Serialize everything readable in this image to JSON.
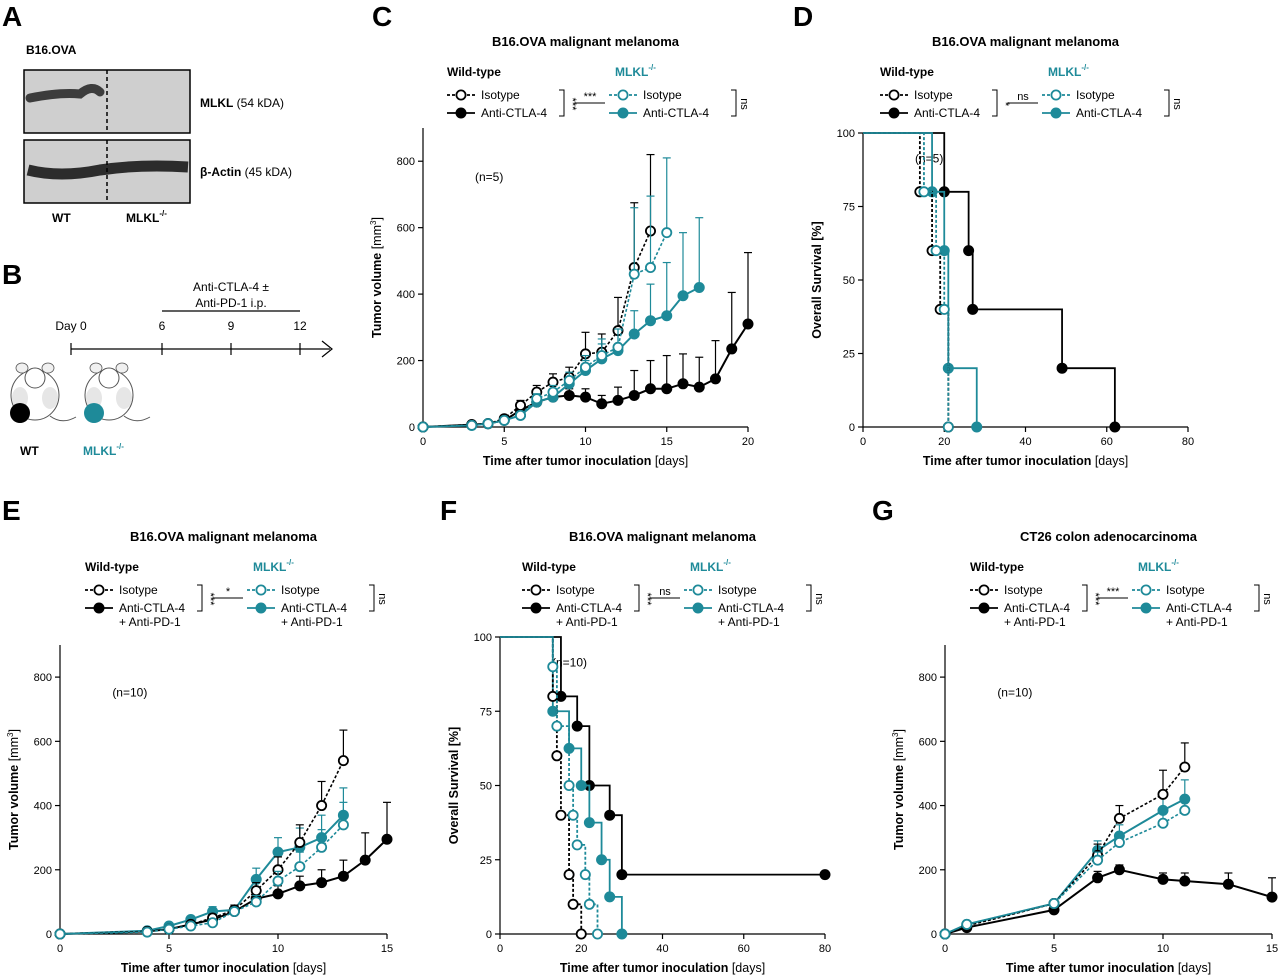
{
  "panel_labels": {
    "A": "A",
    "B": "B",
    "C": "C",
    "D": "D",
    "E": "E",
    "F": "F",
    "G": "G"
  },
  "colors": {
    "wt": "#000000",
    "mlkl": "#1e8a99"
  },
  "panelA": {
    "cell_line": "B16.OVA",
    "bands": [
      {
        "name": "MLKL",
        "size": " (54 kDA)"
      },
      {
        "name": "β-Actin",
        "size": " (45 kDA)"
      }
    ],
    "lanes": {
      "wt": "WT",
      "mlkl": "MLKL",
      "mlkl_sup": "-/-"
    }
  },
  "panelB": {
    "treatment_line1": "Anti-CTLA-4 ±",
    "treatment_line2": "Anti-PD-1 i.p.",
    "day_label": "Day 0",
    "days": [
      "6",
      "9",
      "12"
    ],
    "wt_label": "WT",
    "mlkl_label": "MLKL",
    "mlkl_sup": "-/-"
  },
  "chart_data": [
    {
      "id": "C",
      "type": "line",
      "title": "B16.OVA malignant melanoma",
      "xlabel": "Time after tumor inoculation",
      "xunit": "[days]",
      "ylabel": "Tumor volume",
      "yunit": "[mm",
      "yunit_sup": "3",
      "yunit_end": "]",
      "xlim": [
        0,
        20
      ],
      "xticks": [
        0,
        5,
        10,
        15,
        20
      ],
      "ylim": [
        0,
        900
      ],
      "yticks": [
        0,
        200,
        400,
        600,
        800
      ],
      "n_label": "(n=5)",
      "legend": {
        "wt_header": "Wild-type",
        "mlkl_header": "MLKL",
        "mlkl_sup": "-/-",
        "wt_items": [
          [
            "Isotype"
          ],
          [
            "Anti-CTLA-4"
          ]
        ],
        "mlkl_items": [
          [
            "Isotype"
          ],
          [
            "Anti-CTLA-4"
          ]
        ],
        "wt_sig": "***",
        "cross_sig": "***",
        "mlkl_sig": "ns"
      },
      "series": [
        {
          "name": "Isotype",
          "group": "wt",
          "filled": false,
          "dashed": true,
          "x": [
            0,
            3,
            4,
            5,
            6,
            7,
            8,
            9,
            10,
            11,
            12,
            13,
            14
          ],
          "y": [
            0,
            7,
            10,
            25,
            65,
            105,
            135,
            150,
            220,
            225,
            290,
            480,
            590
          ],
          "err": [
            0,
            3,
            5,
            8,
            15,
            20,
            25,
            30,
            65,
            55,
            100,
            195,
            230
          ]
        },
        {
          "name": "Anti-CTLA-4",
          "group": "wt",
          "filled": true,
          "dashed": false,
          "x": [
            0,
            3,
            4,
            5,
            6,
            7,
            8,
            9,
            10,
            11,
            12,
            13,
            14,
            15,
            16,
            17,
            18,
            19,
            20
          ],
          "y": [
            0,
            7,
            10,
            20,
            50,
            75,
            90,
            95,
            90,
            70,
            80,
            95,
            115,
            115,
            130,
            120,
            145,
            235,
            310
          ],
          "err": [
            0,
            3,
            5,
            8,
            10,
            15,
            20,
            20,
            25,
            25,
            40,
            75,
            85,
            100,
            90,
            90,
            115,
            170,
            215
          ]
        },
        {
          "name": "Isotype",
          "group": "mlkl",
          "filled": false,
          "dashed": true,
          "x": [
            0,
            3,
            4,
            5,
            6,
            7,
            8,
            9,
            10,
            11,
            12,
            13,
            14,
            15
          ],
          "y": [
            0,
            5,
            10,
            20,
            35,
            85,
            105,
            140,
            180,
            215,
            240,
            460,
            480,
            585
          ],
          "err": [
            0,
            3,
            5,
            8,
            10,
            15,
            20,
            25,
            35,
            50,
            55,
            200,
            215,
            225
          ]
        },
        {
          "name": "Anti-CTLA-4",
          "group": "mlkl",
          "filled": true,
          "dashed": false,
          "x": [
            0,
            3,
            4,
            5,
            6,
            7,
            8,
            9,
            10,
            11,
            12,
            13,
            14,
            15,
            16,
            17
          ],
          "y": [
            0,
            5,
            10,
            20,
            35,
            75,
            90,
            130,
            170,
            205,
            230,
            280,
            320,
            335,
            395,
            420
          ],
          "err": [
            0,
            3,
            5,
            8,
            10,
            12,
            15,
            20,
            30,
            45,
            50,
            70,
            110,
            160,
            190,
            210
          ]
        }
      ]
    },
    {
      "id": "D",
      "type": "line",
      "title": "B16.OVA malignant melanoma",
      "xlabel": "Time after tumor inoculation",
      "xunit": "[days]",
      "ylabel": "Overall Survival [%]",
      "xlim": [
        0,
        80
      ],
      "xticks": [
        0,
        20,
        40,
        60,
        80
      ],
      "ylim": [
        0,
        100
      ],
      "yticks": [
        0,
        25,
        50,
        75,
        100
      ],
      "n_label": "(n=5)",
      "legend": {
        "wt_header": "Wild-type",
        "mlkl_header": "MLKL",
        "mlkl_sup": "-/-",
        "wt_items": [
          [
            "Isotype"
          ],
          [
            "Anti-CTLA-4"
          ]
        ],
        "mlkl_items": [
          [
            "Isotype"
          ],
          [
            "Anti-CTLA-4"
          ]
        ],
        "wt_sig": "*",
        "cross_sig": "ns",
        "mlkl_sig": "ns"
      },
      "series": [
        {
          "name": "Isotype",
          "group": "wt",
          "filled": false,
          "dashed": true,
          "steps": [
            [
              14,
              80
            ],
            [
              17,
              60
            ],
            [
              19,
              40
            ],
            [
              21,
              0
            ]
          ]
        },
        {
          "name": "Anti-CTLA-4",
          "group": "wt",
          "filled": true,
          "dashed": false,
          "steps": [
            [
              20,
              80
            ],
            [
              26,
              60
            ],
            [
              27,
              40
            ],
            [
              49,
              20
            ],
            [
              62,
              0
            ]
          ]
        },
        {
          "name": "Isotype",
          "group": "mlkl",
          "filled": false,
          "dashed": true,
          "steps": [
            [
              15,
              80
            ],
            [
              18,
              60
            ],
            [
              20,
              40
            ],
            [
              21,
              0
            ]
          ]
        },
        {
          "name": "Anti-CTLA-4",
          "group": "mlkl",
          "filled": true,
          "dashed": false,
          "steps": [
            [
              17,
              80
            ],
            [
              20,
              60
            ],
            [
              21,
              20
            ],
            [
              28,
              0
            ]
          ]
        }
      ]
    },
    {
      "id": "E",
      "type": "line",
      "title": "B16.OVA malignant melanoma",
      "xlabel": "Time after tumor inoculation",
      "xunit": "[days]",
      "ylabel": "Tumor volume",
      "yunit": "[mm",
      "yunit_sup": "3",
      "yunit_end": "]",
      "xlim": [
        0,
        15
      ],
      "xticks": [
        0,
        5,
        10,
        15
      ],
      "ylim": [
        0,
        900
      ],
      "yticks": [
        0,
        200,
        400,
        600,
        800
      ],
      "n_label": "(n=10)",
      "legend": {
        "wt_header": "Wild-type",
        "mlkl_header": "MLKL",
        "mlkl_sup": "-/-",
        "wt_items": [
          [
            "Isotype"
          ],
          [
            "Anti-CTLA-4",
            "+ Anti-PD-1"
          ]
        ],
        "mlkl_items": [
          [
            "Isotype"
          ],
          [
            "Anti-CTLA-4",
            "+ Anti-PD-1"
          ]
        ],
        "wt_sig": "***",
        "cross_sig": "*",
        "mlkl_sig": "ns"
      },
      "series": [
        {
          "name": "Isotype",
          "group": "wt",
          "filled": false,
          "dashed": true,
          "x": [
            0,
            4,
            5,
            6,
            7,
            8,
            9,
            10,
            11,
            12,
            13
          ],
          "y": [
            0,
            8,
            15,
            30,
            50,
            75,
            135,
            200,
            285,
            400,
            540
          ],
          "err": [
            0,
            4,
            5,
            8,
            10,
            15,
            25,
            40,
            55,
            75,
            95
          ]
        },
        {
          "name": "Anti-CTLA-4 + Anti-PD-1",
          "group": "wt",
          "filled": true,
          "dashed": false,
          "x": [
            0,
            4,
            5,
            6,
            7,
            8,
            9,
            10,
            11,
            12,
            13,
            14,
            15
          ],
          "y": [
            0,
            8,
            15,
            30,
            45,
            70,
            110,
            125,
            150,
            160,
            180,
            230,
            295
          ],
          "err": [
            0,
            4,
            5,
            6,
            8,
            12,
            20,
            25,
            30,
            40,
            50,
            85,
            115
          ]
        },
        {
          "name": "Isotype",
          "group": "mlkl",
          "filled": false,
          "dashed": true,
          "x": [
            0,
            4,
            5,
            6,
            7,
            8,
            9,
            10,
            11,
            12,
            13
          ],
          "y": [
            0,
            6,
            15,
            25,
            35,
            70,
            100,
            165,
            210,
            270,
            340
          ],
          "err": [
            0,
            3,
            5,
            6,
            8,
            12,
            20,
            30,
            45,
            55,
            70
          ]
        },
        {
          "name": "Anti-CTLA-4 + Anti-PD-1",
          "group": "mlkl",
          "filled": true,
          "dashed": false,
          "x": [
            0,
            4,
            5,
            6,
            7,
            8,
            9,
            10,
            11,
            12,
            13
          ],
          "y": [
            0,
            10,
            25,
            45,
            70,
            75,
            170,
            255,
            270,
            300,
            370
          ],
          "err": [
            0,
            5,
            8,
            10,
            15,
            15,
            35,
            45,
            60,
            70,
            85
          ]
        }
      ]
    },
    {
      "id": "F",
      "type": "line",
      "title": "B16.OVA malignant melanoma",
      "xlabel": "Time after tumor inoculation",
      "xunit": "[days]",
      "ylabel": "Overall Survival [%]",
      "xlim": [
        0,
        80
      ],
      "xticks": [
        0,
        20,
        40,
        60,
        80
      ],
      "ylim": [
        0,
        100
      ],
      "yticks": [
        0,
        25,
        50,
        75,
        100
      ],
      "n_label": "(n=10)",
      "legend": {
        "wt_header": "Wild-type",
        "mlkl_header": "MLKL",
        "mlkl_sup": "-/-",
        "wt_items": [
          [
            "Isotype"
          ],
          [
            "Anti-CTLA-4",
            "+ Anti-PD-1"
          ]
        ],
        "mlkl_items": [
          [
            "Isotype"
          ],
          [
            "Anti-CTLA-4",
            "+ Anti-PD-1"
          ]
        ],
        "wt_sig": "***",
        "cross_sig": "ns",
        "mlkl_sig": "ns"
      },
      "series": [
        {
          "name": "Isotype",
          "group": "wt",
          "filled": false,
          "dashed": true,
          "steps": [
            [
              13,
              80
            ],
            [
              14,
              60
            ],
            [
              15,
              40
            ],
            [
              17,
              20
            ],
            [
              18,
              10
            ],
            [
              20,
              0
            ]
          ]
        },
        {
          "name": "Anti-CTLA-4 + Anti-PD-1",
          "group": "wt",
          "filled": true,
          "dashed": false,
          "steps": [
            [
              15,
              80
            ],
            [
              19,
              70
            ],
            [
              22,
              50
            ],
            [
              27,
              40
            ],
            [
              30,
              20
            ]
          ],
          "end": [
            80,
            20
          ]
        },
        {
          "name": "Isotype",
          "group": "mlkl",
          "filled": false,
          "dashed": true,
          "steps": [
            [
              13,
              90
            ],
            [
              14,
              70
            ],
            [
              17,
              50
            ],
            [
              18,
              40
            ],
            [
              19,
              30
            ],
            [
              21,
              20
            ],
            [
              22,
              10
            ],
            [
              24,
              0
            ]
          ]
        },
        {
          "name": "Anti-CTLA-4 + Anti-PD-1",
          "group": "mlkl",
          "filled": true,
          "dashed": false,
          "steps": [
            [
              13,
              75
            ],
            [
              17,
              62.5
            ],
            [
              20,
              50
            ],
            [
              22,
              37.5
            ],
            [
              25,
              25
            ],
            [
              27,
              12.5
            ],
            [
              30,
              0
            ]
          ]
        }
      ]
    },
    {
      "id": "G",
      "type": "line",
      "title": "CT26 colon adenocarcinoma",
      "xlabel": "Time after tumor inoculation",
      "xunit": "[days]",
      "ylabel": "Tumor volume",
      "yunit": "[mm",
      "yunit_sup": "3",
      "yunit_end": "]",
      "xlim": [
        0,
        15
      ],
      "xticks": [
        0,
        5,
        10,
        15
      ],
      "ylim": [
        0,
        900
      ],
      "yticks": [
        0,
        200,
        400,
        600,
        800
      ],
      "n_label": "(n=10)",
      "legend": {
        "wt_header": "Wild-type",
        "mlkl_header": "MLKL",
        "mlkl_sup": "-/-",
        "wt_items": [
          [
            "Isotype"
          ],
          [
            "Anti-CTLA-4",
            "+ Anti-PD-1"
          ]
        ],
        "mlkl_items": [
          [
            "Isotype"
          ],
          [
            "Anti-CTLA-4",
            "+ Anti-PD-1"
          ]
        ],
        "wt_sig": "***",
        "cross_sig": "***",
        "mlkl_sig": "ns"
      },
      "series": [
        {
          "name": "Isotype",
          "group": "wt",
          "filled": false,
          "dashed": true,
          "x": [
            0,
            1,
            5,
            7,
            8,
            10,
            11
          ],
          "y": [
            0,
            25,
            95,
            245,
            360,
            435,
            520
          ],
          "err": [
            0,
            5,
            10,
            35,
            40,
            75,
            75
          ]
        },
        {
          "name": "Anti-CTLA-4 + Anti-PD-1",
          "group": "wt",
          "filled": true,
          "dashed": false,
          "x": [
            0,
            1,
            5,
            7,
            8,
            10,
            11,
            13,
            15
          ],
          "y": [
            0,
            20,
            75,
            175,
            200,
            170,
            165,
            155,
            115
          ],
          "err": [
            0,
            5,
            10,
            20,
            15,
            20,
            25,
            35,
            60
          ]
        },
        {
          "name": "Isotype",
          "group": "mlkl",
          "filled": false,
          "dashed": true,
          "x": [
            0,
            1,
            5,
            7,
            8,
            10,
            11
          ],
          "y": [
            0,
            30,
            95,
            230,
            285,
            345,
            385
          ],
          "err": [
            0,
            5,
            10,
            25,
            30,
            40,
            35
          ]
        },
        {
          "name": "Anti-CTLA-4 + Anti-PD-1",
          "group": "mlkl",
          "filled": true,
          "dashed": false,
          "x": [
            0,
            1,
            5,
            7,
            8,
            10,
            11
          ],
          "y": [
            0,
            30,
            95,
            260,
            305,
            385,
            420
          ],
          "err": [
            0,
            5,
            10,
            30,
            35,
            50,
            60
          ]
        }
      ]
    }
  ]
}
